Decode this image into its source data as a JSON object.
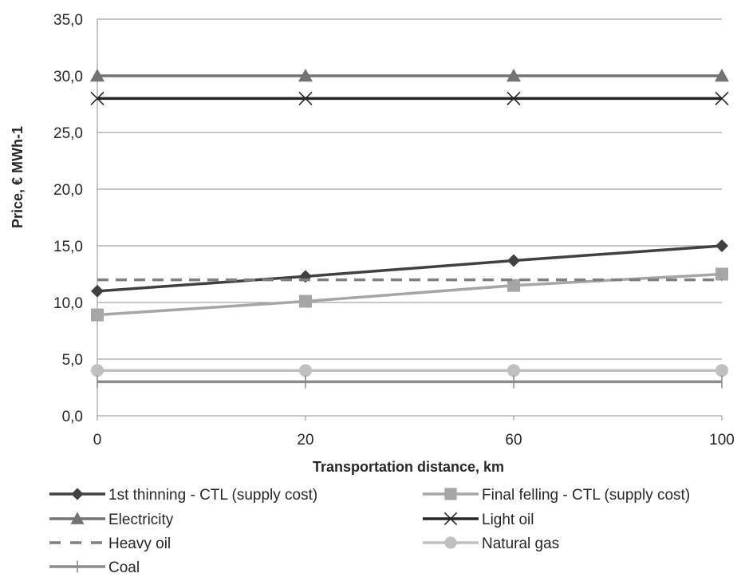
{
  "chart_data": {
    "type": "line",
    "xlabel": "Transportation distance, km",
    "ylabel": "Price, € MWh-1",
    "categories": [
      "0",
      "20",
      "60",
      "100"
    ],
    "ylim": [
      0,
      35
    ],
    "yticks": [
      "0,0",
      "5,0",
      "10,0",
      "15,0",
      "20,0",
      "25,0",
      "30,0",
      "35,0"
    ],
    "grid": "horizontal",
    "legend_position": "bottom",
    "series": [
      {
        "name": "1st thinning - CTL (supply cost)",
        "values": [
          11.0,
          12.3,
          13.7,
          15.0
        ],
        "color": "#404040",
        "marker": "diamond",
        "dash": "solid"
      },
      {
        "name": "Final felling - CTL (supply cost)",
        "values": [
          8.9,
          10.1,
          11.5,
          12.5
        ],
        "color": "#a6a6a6",
        "marker": "square",
        "dash": "solid"
      },
      {
        "name": "Electricity",
        "values": [
          30.0,
          30.0,
          30.0,
          30.0
        ],
        "color": "#737373",
        "marker": "triangle",
        "dash": "solid"
      },
      {
        "name": "Light oil",
        "values": [
          28.0,
          28.0,
          28.0,
          28.0
        ],
        "color": "#262626",
        "marker": "x",
        "dash": "solid"
      },
      {
        "name": "Heavy oil",
        "values": [
          12.0,
          12.0,
          12.0,
          12.0
        ],
        "color": "#7f7f7f",
        "marker": "none",
        "dash": "dashed"
      },
      {
        "name": "Natural gas",
        "values": [
          4.0,
          4.0,
          4.0,
          4.0
        ],
        "color": "#c0c0c0",
        "marker": "circle",
        "dash": "solid"
      },
      {
        "name": "Coal",
        "values": [
          3.0,
          3.0,
          3.0,
          3.0
        ],
        "color": "#8c8c8c",
        "marker": "plus",
        "dash": "solid"
      }
    ]
  }
}
